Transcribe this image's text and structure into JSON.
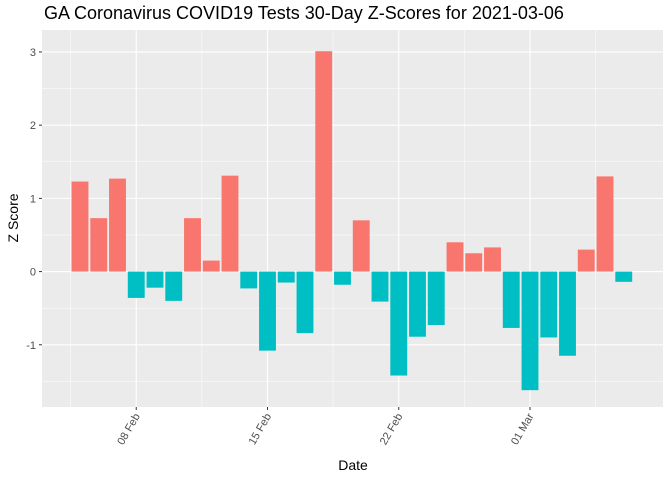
{
  "chart_data": {
    "type": "bar",
    "title": "GA Coronavirus COVID19 Tests 30-Day Z-Scores for 2021-03-06",
    "xlabel": "Date",
    "ylabel": "Z Score",
    "ylim": [
      -1.85,
      3.3
    ],
    "y_ticks": [
      -1,
      0,
      1,
      2,
      3
    ],
    "x_ticks": [
      {
        "label": "08 Feb",
        "day_index": 3
      },
      {
        "label": "15 Feb",
        "day_index": 10
      },
      {
        "label": "22 Feb",
        "day_index": 17
      },
      {
        "label": "01 Mar",
        "day_index": 24
      }
    ],
    "grid": true,
    "legend": "none",
    "colors": {
      "positive": "#F8766D",
      "negative": "#00BFC4",
      "panel": "#EBEBEB",
      "grid": "#FFFFFF"
    },
    "categories": [
      "2021-02-05",
      "2021-02-06",
      "2021-02-07",
      "2021-02-08",
      "2021-02-09",
      "2021-02-10",
      "2021-02-11",
      "2021-02-12",
      "2021-02-13",
      "2021-02-14",
      "2021-02-15",
      "2021-02-16",
      "2021-02-17",
      "2021-02-18",
      "2021-02-19",
      "2021-02-20",
      "2021-02-21",
      "2021-02-22",
      "2021-02-23",
      "2021-02-24",
      "2021-02-25",
      "2021-02-26",
      "2021-02-27",
      "2021-02-28",
      "2021-03-01",
      "2021-03-02",
      "2021-03-03",
      "2021-03-04",
      "2021-03-05",
      "2021-03-06"
    ],
    "values": [
      1.23,
      0.73,
      1.27,
      -0.36,
      -0.22,
      -0.4,
      0.73,
      0.15,
      1.31,
      -0.23,
      -1.08,
      -0.15,
      -0.84,
      3.01,
      -0.18,
      0.7,
      -0.41,
      -1.42,
      -0.89,
      -0.73,
      0.4,
      0.25,
      0.33,
      -0.77,
      -1.62,
      -0.9,
      -1.15,
      0.3,
      1.3,
      -0.14
    ]
  }
}
